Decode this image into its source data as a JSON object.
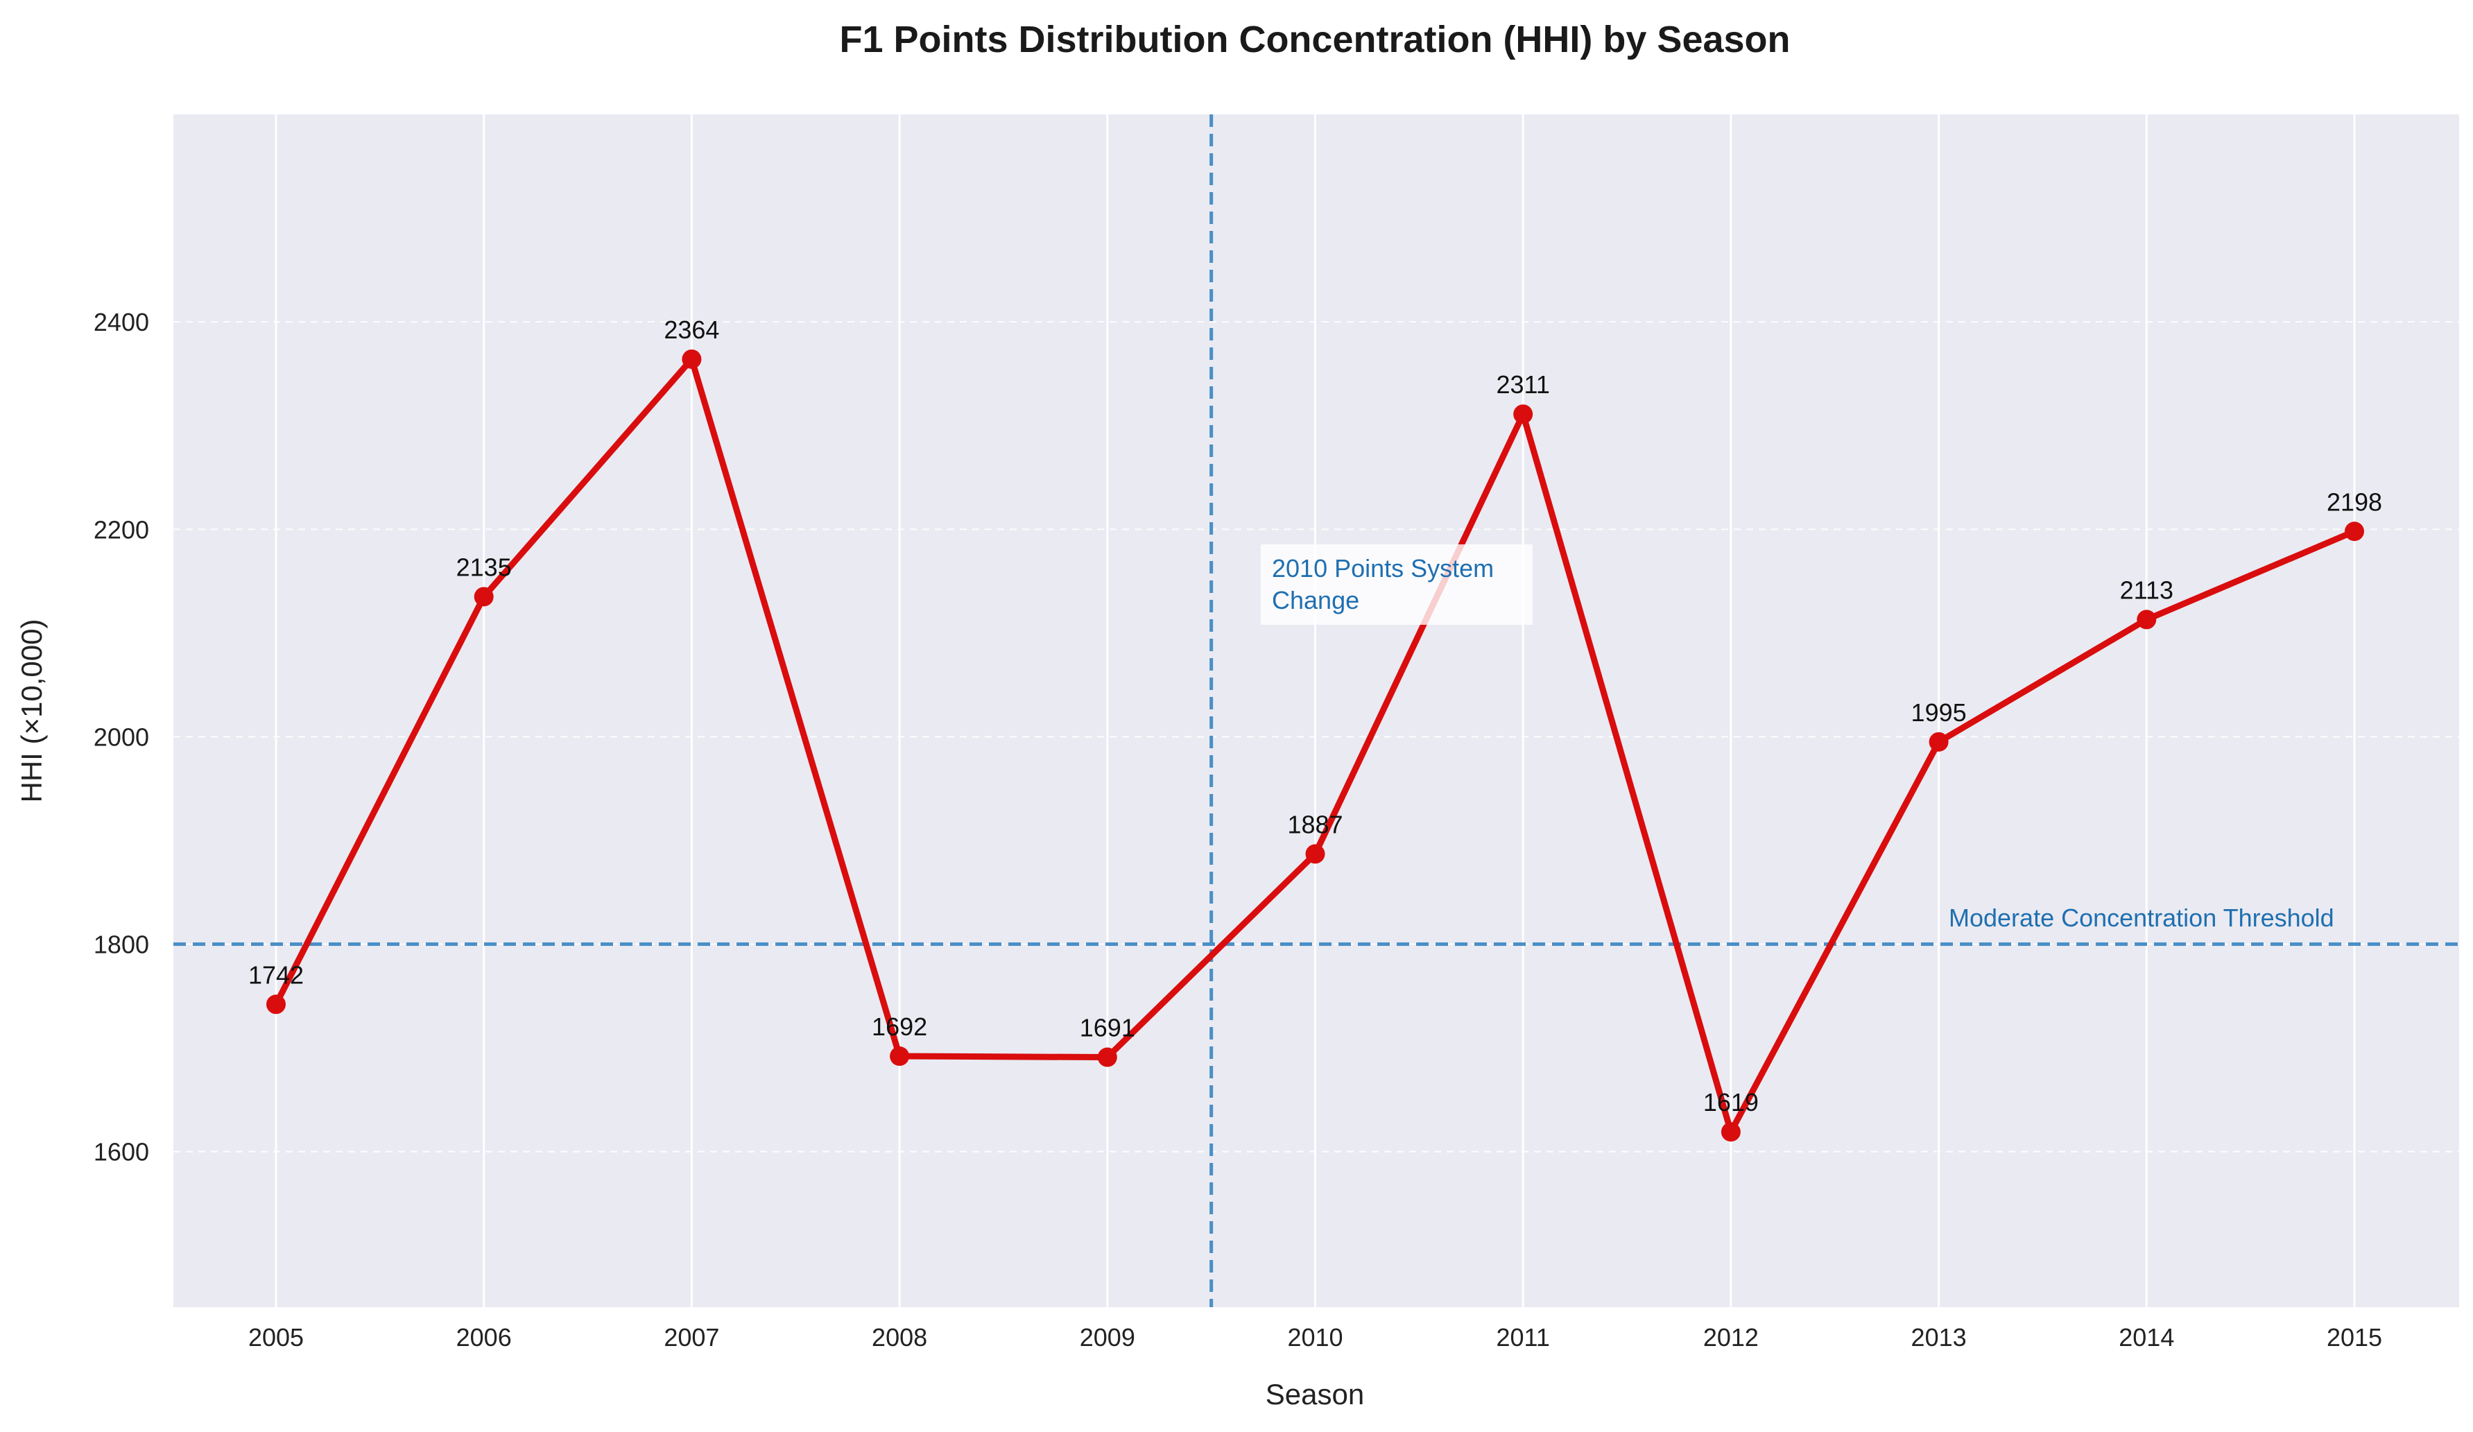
{
  "chart_data": {
    "type": "line",
    "title": "F1 Points Distribution Concentration (HHI) by Season",
    "xlabel": "Season",
    "ylabel": "HHI (×10,000)",
    "categories": [
      "2005",
      "2006",
      "2007",
      "2008",
      "2009",
      "2010",
      "2011",
      "2012",
      "2013",
      "2014",
      "2015"
    ],
    "values": [
      1742,
      2135,
      2364,
      1692,
      1691,
      1887,
      2311,
      1619,
      1995,
      2113,
      2198
    ],
    "ylim": [
      1450,
      2600
    ],
    "yticks": [
      1600,
      1800,
      2000,
      2200,
      2400
    ],
    "grid": true,
    "series_color": "#d90d0d",
    "reference_color": "#4a8fc7",
    "background_color": "#eaeaf2",
    "annotations": {
      "threshold": {
        "value": 1800,
        "label": "Moderate Concentration Threshold"
      },
      "system_change": {
        "x": 2009.5,
        "label_line1": "2010 Points System",
        "label_line2": "Change"
      }
    }
  }
}
